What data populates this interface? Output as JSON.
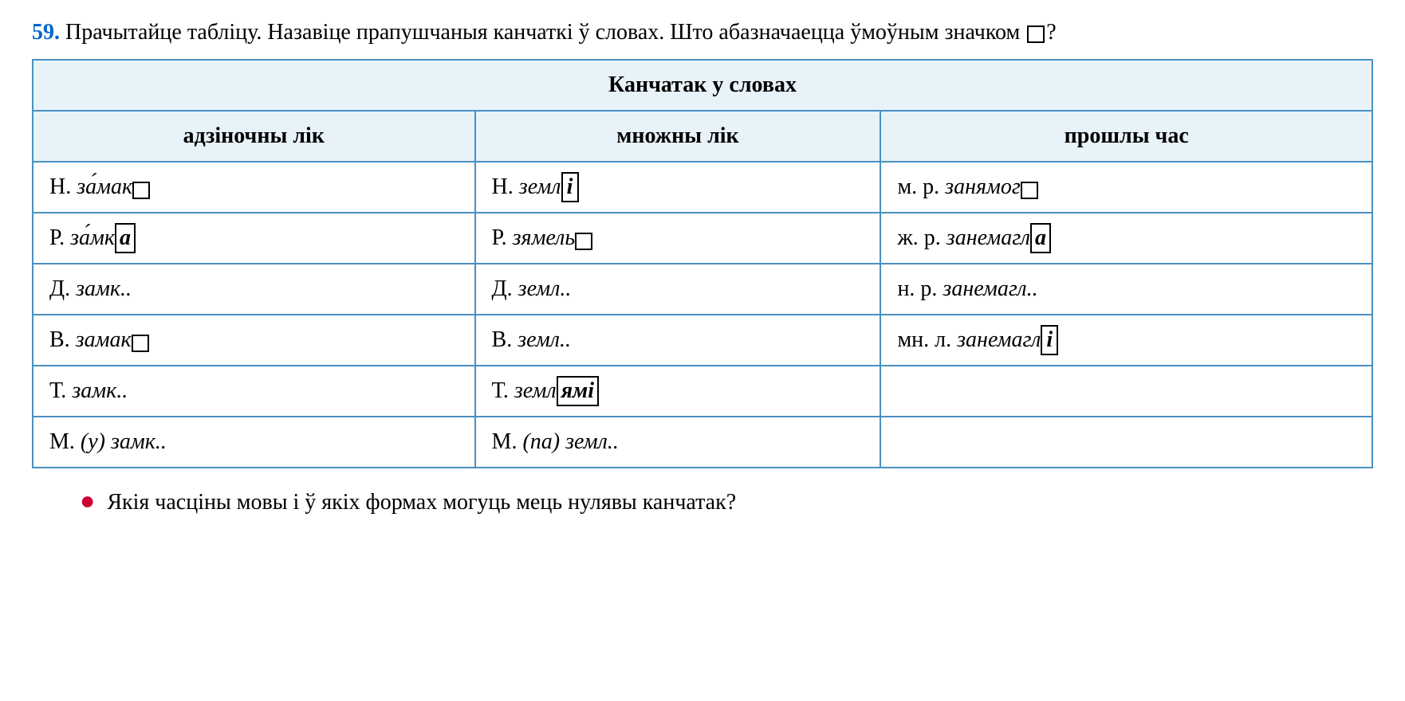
{
  "exercise": {
    "number": "59.",
    "intro_text": "Прачытайце табліцу. Назавіце прапушчаныя канчаткі ў словах. Што абазначаецца ўмоўным значком ",
    "intro_suffix": "?"
  },
  "table": {
    "main_header": "Канчатак у словах",
    "columns": {
      "col1": "адзіночны лік",
      "col2": "множны лік",
      "col3": "прошлы час"
    },
    "rows": [
      {
        "c1_label": "Н. ",
        "c1_word": "за́мак",
        "c1_ending_type": "empty",
        "c1_ending": "",
        "c2_label": "Н. ",
        "c2_word": "земл",
        "c2_ending_type": "boxed",
        "c2_ending": "і",
        "c3_label": "м. р. ",
        "c3_word": "занямог",
        "c3_ending_type": "empty",
        "c3_ending": ""
      },
      {
        "c1_label": "Р. ",
        "c1_word": "за́мк",
        "c1_ending_type": "boxed",
        "c1_ending": "а",
        "c2_label": "Р. ",
        "c2_word": "зямель",
        "c2_ending_type": "empty",
        "c2_ending": "",
        "c3_label": "ж. р. ",
        "c3_word": "занемагл",
        "c3_ending_type": "boxed",
        "c3_ending": "а"
      },
      {
        "c1_label": "Д. ",
        "c1_word": "замк",
        "c1_ending_type": "dots",
        "c1_ending": "..",
        "c2_label": "Д. ",
        "c2_word": "земл",
        "c2_ending_type": "dots",
        "c2_ending": "..",
        "c3_label": "н. р. ",
        "c3_word": "занемагл",
        "c3_ending_type": "dots",
        "c3_ending": ".."
      },
      {
        "c1_label": "В. ",
        "c1_word": "замак",
        "c1_ending_type": "empty",
        "c1_ending": "",
        "c2_label": "В. ",
        "c2_word": "земл",
        "c2_ending_type": "dots",
        "c2_ending": "..",
        "c3_label": "мн. л. ",
        "c3_word": "занемагл",
        "c3_ending_type": "boxed",
        "c3_ending": "і"
      },
      {
        "c1_label": "Т. ",
        "c1_word": "замк",
        "c1_ending_type": "dots",
        "c1_ending": "..",
        "c2_label": "Т. ",
        "c2_word": "земл",
        "c2_ending_type": "boxed",
        "c2_ending": "ямі",
        "c3_label": "",
        "c3_word": "",
        "c3_ending_type": "none",
        "c3_ending": ""
      },
      {
        "c1_label": "М. ",
        "c1_word": "(у) замк",
        "c1_ending_type": "dots",
        "c1_ending": "..",
        "c2_label": "М. ",
        "c2_word": "(па) земл",
        "c2_ending_type": "dots",
        "c2_ending": "..",
        "c3_label": "",
        "c3_word": "",
        "c3_ending_type": "none",
        "c3_ending": ""
      }
    ]
  },
  "bullet_question": "Якія часціны мовы і ў якіх формах могуць мець нулявы канчатак?",
  "colors": {
    "exercise_number": "#0066cc",
    "table_border": "#4a90c2",
    "table_header_bg": "#e8f2f9",
    "bullet": "#cc0033",
    "text": "#000000"
  },
  "fontsize": 28
}
